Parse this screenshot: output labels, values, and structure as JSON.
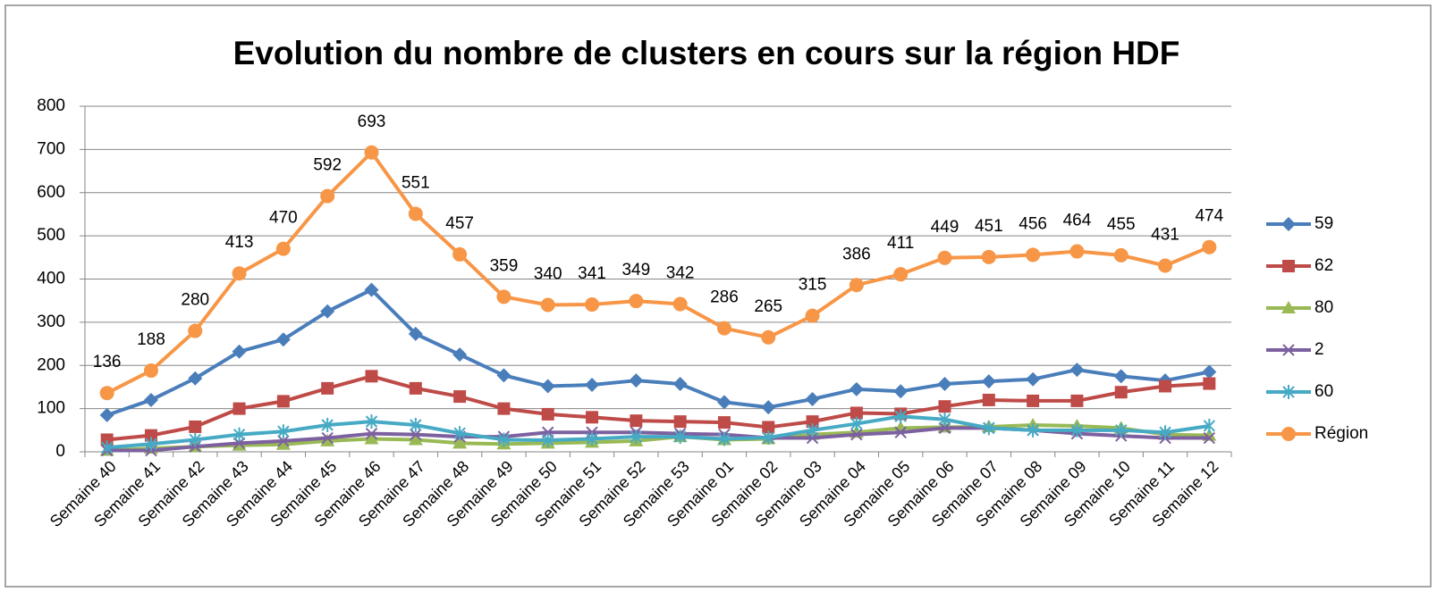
{
  "chart_data": {
    "type": "line",
    "title": "Evolution du nombre de clusters en cours sur la région HDF",
    "categories": [
      "Semaine 40",
      "Semaine 41",
      "Semaine 42",
      "Semaine 43",
      "Semaine 44",
      "Semaine 45",
      "Semaine 46",
      "Semaine 47",
      "Semaine 48",
      "Semaine 49",
      "Semaine 50",
      "Semaine 51",
      "Semaine 52",
      "Semaine 53",
      "Semaine 01",
      "Semaine 02",
      "Semaine 03",
      "Semaine 04",
      "Semaine 05",
      "Semaine 06",
      "Semaine 07",
      "Semaine 08",
      "Semaine 09",
      "Semaine 10",
      "Semaine 11",
      "Semaine 12"
    ],
    "series": [
      {
        "name": "59",
        "color": "#4a7ebb",
        "marker": "diamond",
        "values": [
          85,
          120,
          170,
          232,
          260,
          325,
          375,
          273,
          225,
          177,
          152,
          155,
          165,
          157,
          115,
          103,
          122,
          145,
          140,
          157,
          163,
          168,
          190,
          175,
          165,
          185
        ]
      },
      {
        "name": "62",
        "color": "#be4b48",
        "marker": "square",
        "values": [
          28,
          38,
          58,
          100,
          117,
          147,
          175,
          147,
          128,
          100,
          87,
          80,
          72,
          70,
          68,
          57,
          70,
          90,
          88,
          105,
          120,
          118,
          118,
          138,
          152,
          158
        ]
      },
      {
        "name": "80",
        "color": "#98b954",
        "marker": "triangle",
        "values": [
          3,
          8,
          12,
          15,
          17,
          25,
          30,
          28,
          20,
          18,
          20,
          22,
          25,
          35,
          28,
          30,
          40,
          45,
          55,
          57,
          58,
          62,
          60,
          55,
          40,
          38
        ]
      },
      {
        "name": "2",
        "color": "#7d60a0",
        "marker": "x",
        "values": [
          3,
          3,
          12,
          20,
          25,
          32,
          42,
          40,
          35,
          35,
          45,
          45,
          45,
          42,
          40,
          32,
          32,
          40,
          45,
          55,
          55,
          50,
          42,
          37,
          32,
          32
        ]
      },
      {
        "name": "60",
        "color": "#46aac5",
        "marker": "star",
        "values": [
          10,
          18,
          28,
          40,
          47,
          62,
          70,
          62,
          43,
          28,
          27,
          30,
          35,
          35,
          30,
          33,
          50,
          65,
          82,
          75,
          55,
          50,
          50,
          50,
          45,
          60
        ]
      },
      {
        "name": "Région",
        "color": "#f79646",
        "marker": "circle",
        "data_labels": true,
        "values": [
          136,
          188,
          280,
          413,
          470,
          592,
          693,
          551,
          457,
          359,
          340,
          341,
          349,
          342,
          286,
          265,
          315,
          386,
          411,
          449,
          451,
          456,
          464,
          455,
          431,
          474
        ]
      }
    ],
    "ylim": [
      0,
      800
    ],
    "yticks": [
      0,
      100,
      200,
      300,
      400,
      500,
      600,
      700,
      800
    ],
    "grid": true,
    "legend": "right"
  }
}
